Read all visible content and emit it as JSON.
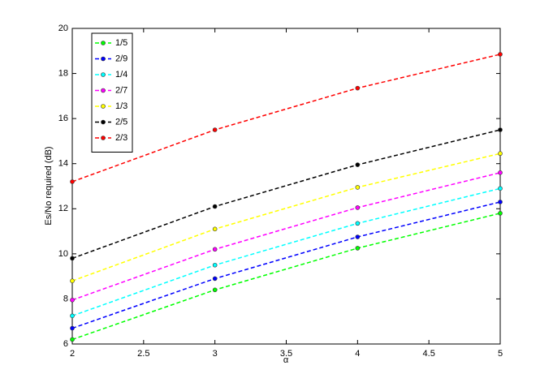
{
  "chart_data": {
    "type": "line",
    "xlabel": "α",
    "ylabel": "Es/No required (dB)",
    "x": [
      2,
      3,
      4,
      5
    ],
    "series": [
      {
        "name": "1/5",
        "color": "#00ff00",
        "values": [
          6.2,
          8.4,
          10.25,
          11.8
        ]
      },
      {
        "name": "2/9",
        "color": "#0000ff",
        "values": [
          6.7,
          8.9,
          10.75,
          12.3
        ]
      },
      {
        "name": "1/4",
        "color": "#00ffff",
        "values": [
          7.25,
          9.5,
          11.35,
          12.9
        ]
      },
      {
        "name": "2/7",
        "color": "#ff00ff",
        "values": [
          7.95,
          10.2,
          12.05,
          13.6
        ]
      },
      {
        "name": "1/3",
        "color": "#ffff00",
        "values": [
          8.8,
          11.1,
          12.95,
          14.45
        ]
      },
      {
        "name": "2/5",
        "color": "#000000",
        "values": [
          9.8,
          12.1,
          13.95,
          15.5
        ]
      },
      {
        "name": "2/3",
        "color": "#ff0000",
        "values": [
          13.2,
          15.5,
          17.35,
          18.85
        ]
      }
    ],
    "xlim": [
      2,
      5
    ],
    "xticks": [
      2,
      2.5,
      3,
      3.5,
      4,
      4.5,
      5
    ],
    "ylim": [
      6,
      20
    ],
    "yticks": [
      6,
      8,
      10,
      12,
      14,
      16,
      18,
      20
    ],
    "grid": false,
    "legend": "northwest"
  }
}
